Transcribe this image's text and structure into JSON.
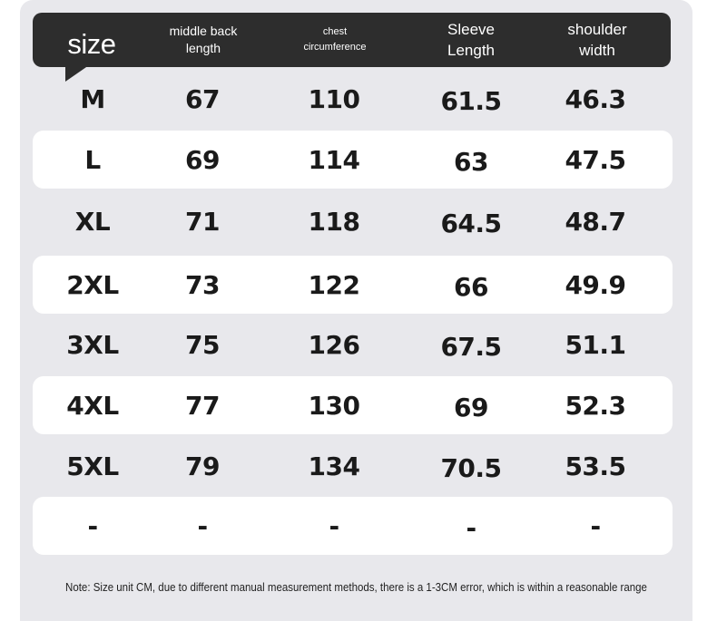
{
  "header": {
    "size_label": "size",
    "back_length": [
      "middle back",
      "length"
    ],
    "chest": [
      "chest",
      "circumference"
    ],
    "sleeve": [
      "Sleeve",
      "Length"
    ],
    "shoulder": [
      "shoulder",
      "width"
    ]
  },
  "rows": [
    {
      "size": "M",
      "back": "67",
      "chest": "110",
      "sleeve": "61.5",
      "shoulder": "46.3"
    },
    {
      "size": "L",
      "back": "69",
      "chest": "114",
      "sleeve": "63",
      "shoulder": "47.5"
    },
    {
      "size": "XL",
      "back": "71",
      "chest": "118",
      "sleeve": "64.5",
      "shoulder": "48.7"
    },
    {
      "size": "2XL",
      "back": "73",
      "chest": "122",
      "sleeve": "66",
      "shoulder": "49.9"
    },
    {
      "size": "3XL",
      "back": "75",
      "chest": "126",
      "sleeve": "67.5",
      "shoulder": "51.1"
    },
    {
      "size": "4XL",
      "back": "77",
      "chest": "130",
      "sleeve": "69",
      "shoulder": "52.3"
    },
    {
      "size": "5XL",
      "back": "79",
      "chest": "134",
      "sleeve": "70.5",
      "shoulder": "53.5"
    },
    {
      "size": "-",
      "back": "-",
      "chest": "-",
      "sleeve": "-",
      "shoulder": "-"
    }
  ],
  "note": "Note: Size unit CM, due to different manual measurement methods, there is a 1-3CM error, which is within a reasonable range",
  "colors": {
    "header_bg": "#2d2d2d",
    "panel_bg": "#e8e8ec",
    "row_highlight": "#ffffff",
    "text": "#1a1a1a"
  }
}
